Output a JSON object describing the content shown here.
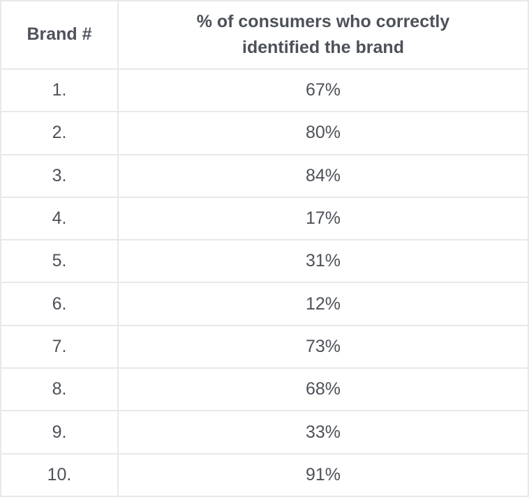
{
  "page": {
    "background": "#ffffff",
    "border_color": "#e8e8e8",
    "text_color": "#4d5159"
  },
  "table": {
    "headers": {
      "brand": "Brand #",
      "percent": "% of consumers who correctly identified the brand"
    },
    "rows": [
      {
        "brand": "1.",
        "percent": "67%"
      },
      {
        "brand": "2.",
        "percent": "80%"
      },
      {
        "brand": "3.",
        "percent": "84%"
      },
      {
        "brand": "4.",
        "percent": "17%"
      },
      {
        "brand": "5.",
        "percent": "31%"
      },
      {
        "brand": "6.",
        "percent": "12%"
      },
      {
        "brand": "7.",
        "percent": "73%"
      },
      {
        "brand": "8.",
        "percent": "68%"
      },
      {
        "brand": "9.",
        "percent": "33%"
      },
      {
        "brand": "10.",
        "percent": "91%"
      }
    ]
  },
  "chart_data": {
    "type": "table",
    "columns": [
      "Brand #",
      "% of consumers who correctly identified the brand"
    ],
    "categories": [
      "1",
      "2",
      "3",
      "4",
      "5",
      "6",
      "7",
      "8",
      "9",
      "10"
    ],
    "values": [
      67,
      80,
      84,
      17,
      31,
      12,
      73,
      68,
      33,
      91
    ],
    "unit": "%"
  }
}
